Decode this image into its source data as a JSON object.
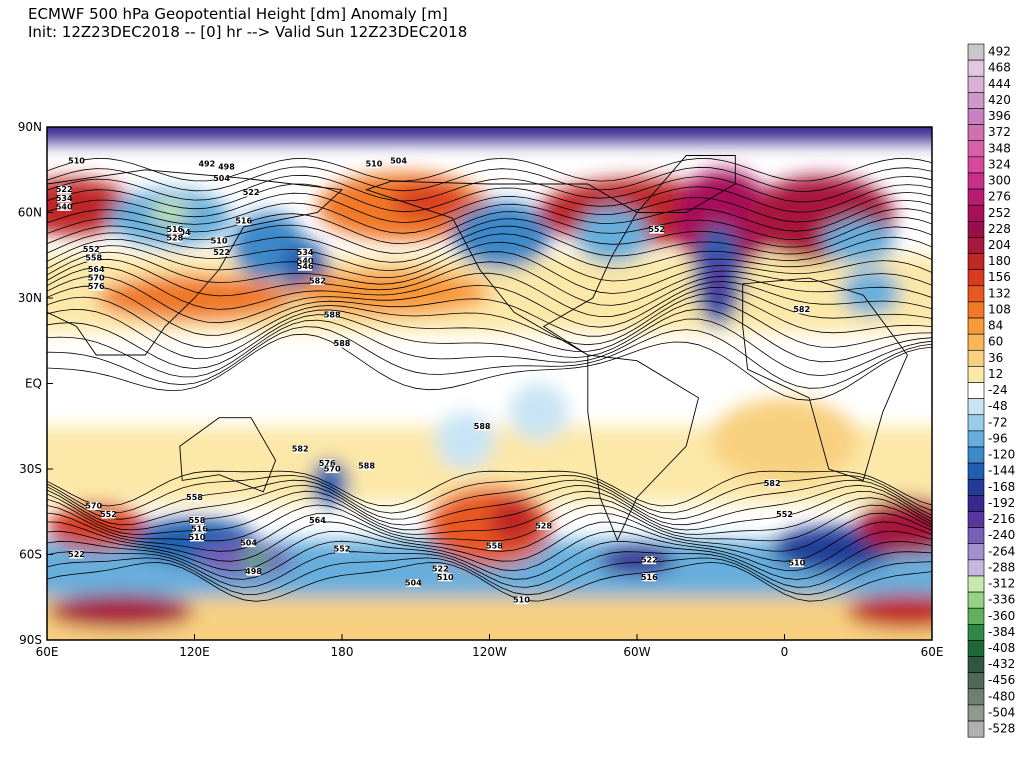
{
  "header": {
    "title": "ECMWF 500 hPa Geopotential Height [dm] Anomaly [m]",
    "subtitle": "Init: 12Z23DEC2018 -- [0] hr --> Valid Sun 12Z23DEC2018"
  },
  "map": {
    "lon_labels": [
      "60E",
      "120E",
      "180",
      "120W",
      "60W",
      "0",
      "60E"
    ],
    "lat_labels": [
      "90N",
      "60N",
      "30N",
      "EQ",
      "30S",
      "60S",
      "90S"
    ],
    "contour_labels": [
      "510",
      "522",
      "534",
      "540",
      "492",
      "498",
      "504",
      "522",
      "516",
      "504",
      "516",
      "528",
      "510",
      "522",
      "534",
      "540",
      "546",
      "552",
      "558",
      "564",
      "570",
      "576",
      "582",
      "588",
      "510",
      "504",
      "552",
      "582",
      "588",
      "588",
      "582",
      "588",
      "576",
      "570",
      "558",
      "570",
      "552",
      "558",
      "516",
      "510",
      "504",
      "498",
      "564",
      "552",
      "522",
      "510",
      "504",
      "558",
      "528",
      "522",
      "516",
      "510",
      "582",
      "552",
      "510",
      "522"
    ]
  },
  "colorbar": {
    "levels": [
      492,
      468,
      444,
      420,
      396,
      372,
      348,
      324,
      300,
      276,
      252,
      228,
      204,
      180,
      156,
      132,
      108,
      84,
      60,
      36,
      12,
      -24,
      -48,
      -72,
      -96,
      -120,
      -144,
      -168,
      -192,
      -216,
      -240,
      -264,
      -288,
      -312,
      -336,
      -360,
      -384,
      -408,
      -432,
      -456,
      -480,
      -504,
      -528
    ],
    "colors": [
      "#c8c8c8",
      "#e0c8e0",
      "#d8b0d8",
      "#d098c8",
      "#c880c0",
      "#d070b0",
      "#d860a8",
      "#d8489c",
      "#c83088",
      "#b81c70",
      "#a8105c",
      "#98104a",
      "#a8183c",
      "#c02828",
      "#d83c20",
      "#e85820",
      "#f07828",
      "#f89838",
      "#f8b858",
      "#f8d080",
      "#fce8a8",
      "#ffffff",
      "#c8e4f4",
      "#98cce8",
      "#68aedc",
      "#3c88c8",
      "#2060b0",
      "#243c98",
      "#382890",
      "#5838a0",
      "#7860b8",
      "#a090cc",
      "#c4b8e0",
      "#c8e8b0",
      "#98d088",
      "#60b060",
      "#308848",
      "#206838",
      "#305840",
      "#506858",
      "#708070",
      "#909890",
      "#b0b0b0"
    ]
  }
}
